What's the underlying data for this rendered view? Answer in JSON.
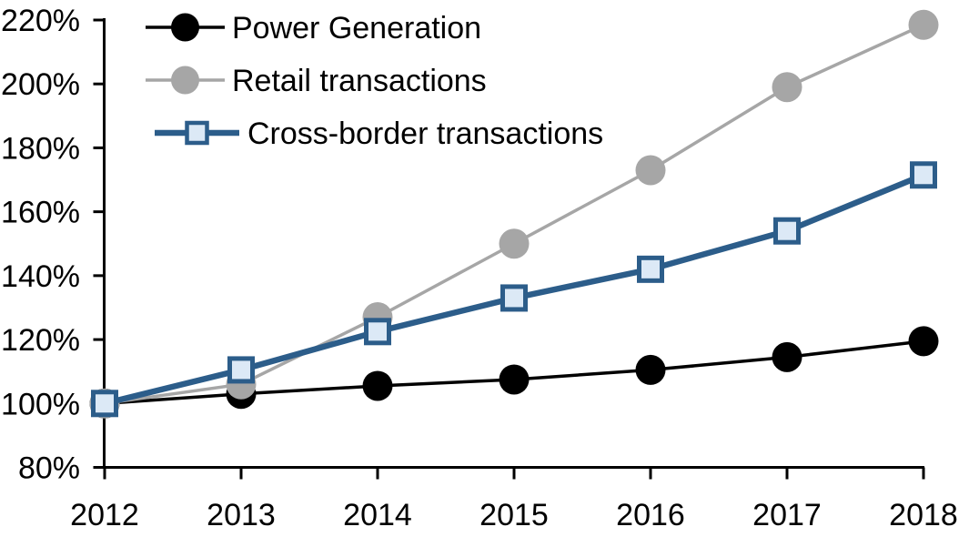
{
  "chart_data": {
    "type": "line",
    "title": "",
    "x": [
      2012,
      2013,
      2014,
      2015,
      2016,
      2017,
      2018
    ],
    "x_tick_labels": [
      "2012",
      "2013",
      "2014",
      "2015",
      "2016",
      "2017",
      "2018"
    ],
    "y_axis": {
      "min": 80,
      "max": 220,
      "step": 20,
      "format": "percent",
      "tick_labels": [
        "80%",
        "100%",
        "120%",
        "140%",
        "160%",
        "180%",
        "200%",
        "220%"
      ]
    },
    "grid": false,
    "legend_position": "top-left-inside",
    "colors": {
      "axis": "#000000",
      "power_generation": "#000000",
      "retail_transactions": "#A6A6A6",
      "cross_border_line": "#2C5D8A",
      "cross_border_marker_fill": "#DCE9F6",
      "background": "#FFFFFF"
    },
    "series": [
      {
        "name": "Power Generation",
        "color": "#000000",
        "marker": "circle",
        "marker_fill": "#000000",
        "line_width": 3.5,
        "values": [
          100,
          103,
          105.5,
          107.5,
          110.5,
          114.5,
          119.5
        ]
      },
      {
        "name": "Retail transactions",
        "color": "#A6A6A6",
        "marker": "circle",
        "marker_fill": "#A6A6A6",
        "line_width": 3.5,
        "values": [
          100,
          106,
          127,
          150,
          173,
          199,
          218.5
        ]
      },
      {
        "name": "Cross-border transactions",
        "color": "#2C5D8A",
        "marker": "square",
        "marker_fill": "#DCE9F6",
        "line_width": 6.5,
        "values": [
          100,
          110.5,
          122.5,
          133,
          142,
          154,
          171.5
        ]
      }
    ]
  }
}
